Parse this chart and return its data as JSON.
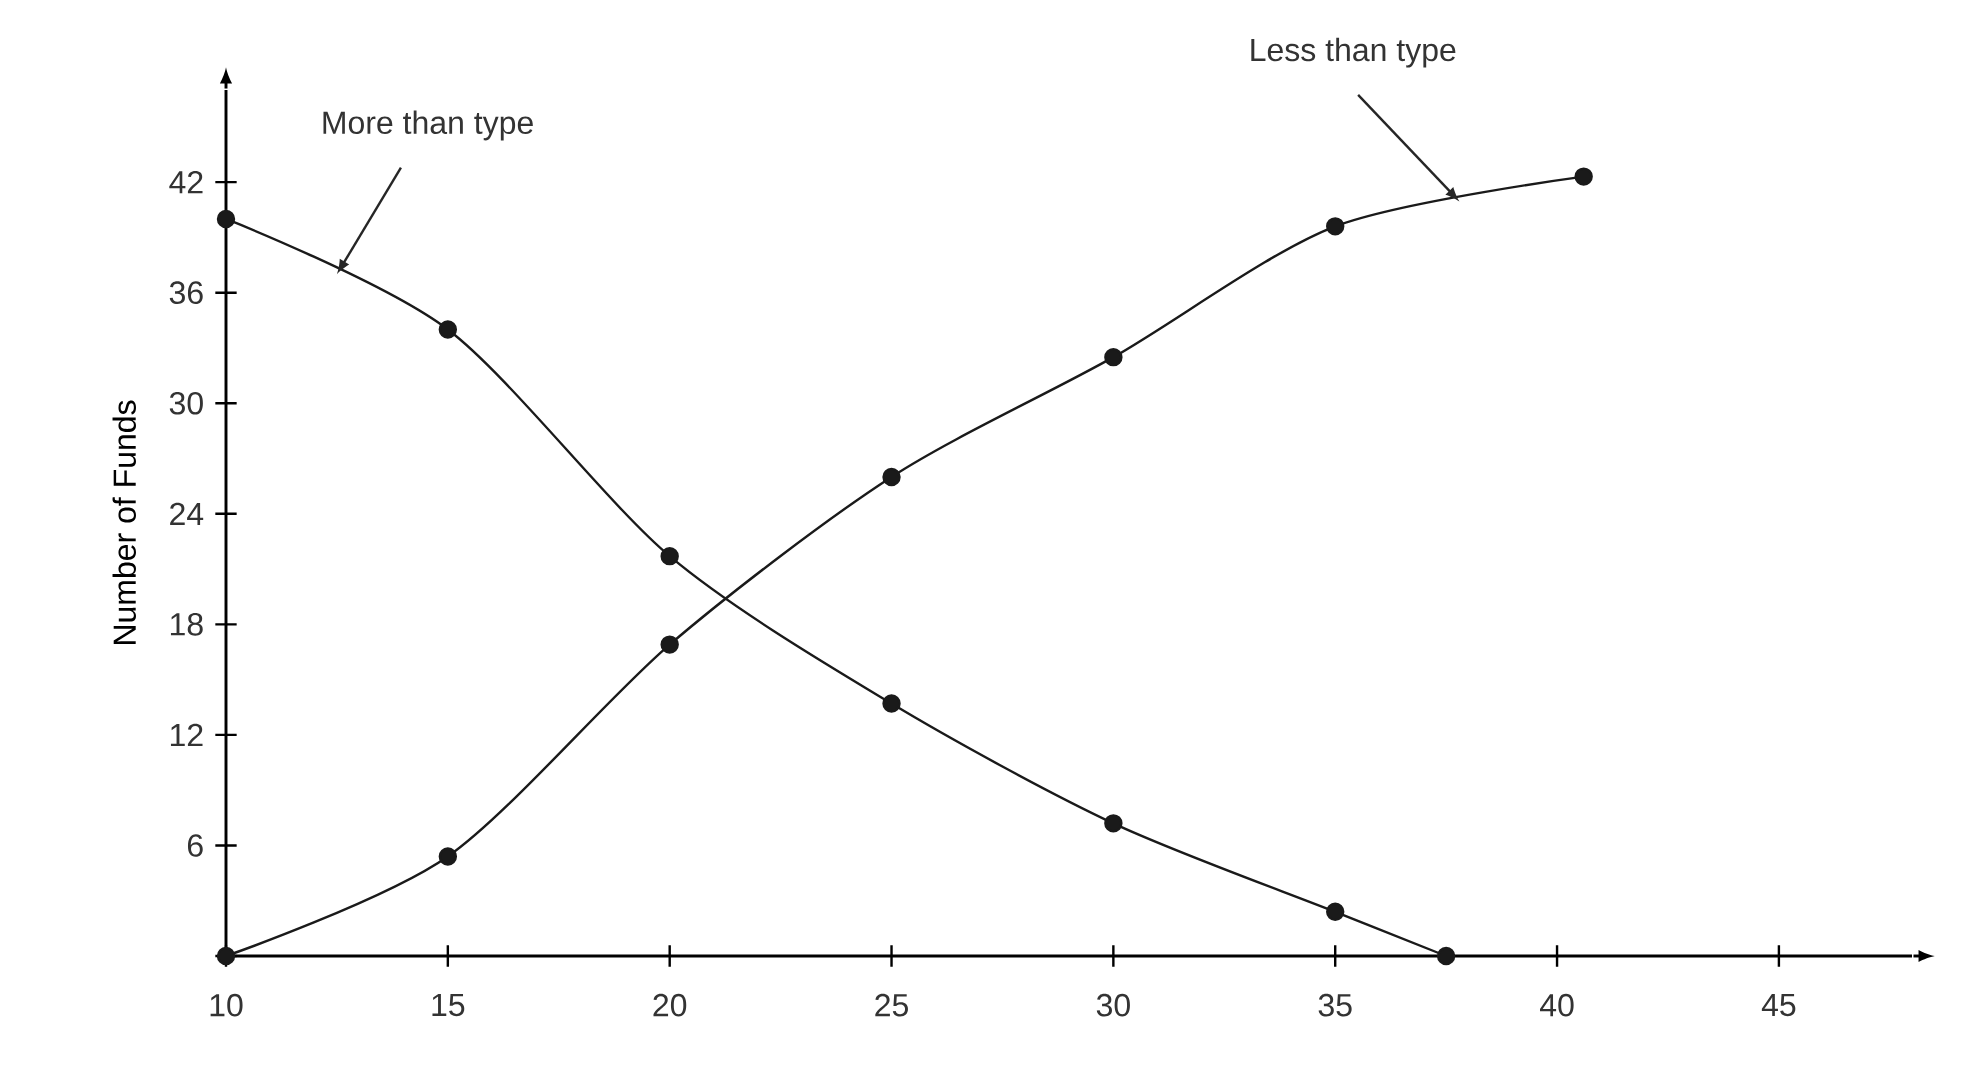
{
  "chart_data": {
    "type": "line",
    "ylabel": "Number of Funds",
    "xlim": [
      10,
      48
    ],
    "ylim": [
      0,
      47
    ],
    "xticks": [
      10,
      15,
      20,
      25,
      30,
      35,
      40,
      45
    ],
    "yticks": [
      {
        "value": 0,
        "label": null
      },
      6,
      12,
      18,
      24,
      30,
      36,
      42
    ],
    "marker": "circle",
    "line_style": "solid",
    "series": [
      {
        "name": "More than type",
        "color": "#1a1a1a",
        "x": [
          10,
          15,
          20,
          25,
          30,
          35,
          37.5
        ],
        "values": [
          40,
          34,
          21.7,
          13.7,
          7.2,
          2.4,
          0
        ]
      },
      {
        "name": "Less than type",
        "color": "#1a1a1a",
        "x": [
          10,
          15,
          20,
          25,
          30,
          35,
          40.6
        ],
        "values": [
          0,
          5.4,
          16.9,
          26,
          32.5,
          39.6,
          42.3
        ]
      }
    ]
  }
}
